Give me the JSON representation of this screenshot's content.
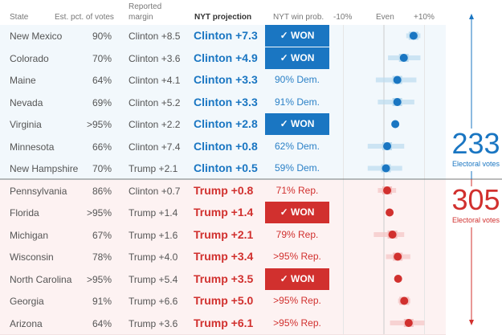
{
  "header": {
    "state": "State",
    "pct": "Est. pct. of votes",
    "margin_l1": "Reported",
    "margin_l2": "margin",
    "projection": "NYT projection",
    "winprob": "NYT win prob.",
    "axis_left": "-10%",
    "axis_mid": "Even",
    "axis_right": "+10%"
  },
  "colors": {
    "clinton": "#1a76c2",
    "trump": "#d1302e"
  },
  "totals": {
    "clinton": "233",
    "trump": "305",
    "label": "Electoral votes"
  },
  "chart_data": {
    "type": "scatter",
    "title": "NYT projection",
    "xlabel": "margin",
    "xlim": [
      -10,
      10
    ],
    "rows": [
      {
        "state": "New Mexico",
        "pct": "90%",
        "margin": "Clinton +8.5",
        "proj": "Clinton +7.3",
        "prob": "✓ WON",
        "won": true,
        "party": "c",
        "value": 7.3,
        "lo": 5.5,
        "hi": 9
      },
      {
        "state": "Colorado",
        "pct": "70%",
        "margin": "Clinton +3.6",
        "proj": "Clinton +4.9",
        "prob": "✓ WON",
        "won": true,
        "party": "c",
        "value": 4.9,
        "lo": 1,
        "hi": 9
      },
      {
        "state": "Maine",
        "pct": "64%",
        "margin": "Clinton +4.1",
        "proj": "Clinton +3.3",
        "prob": "90% Dem.",
        "won": false,
        "party": "c",
        "value": 3.3,
        "lo": -2,
        "hi": 8
      },
      {
        "state": "Nevada",
        "pct": "69%",
        "margin": "Clinton +5.2",
        "proj": "Clinton +3.3",
        "prob": "91% Dem.",
        "won": false,
        "party": "c",
        "value": 3.3,
        "lo": -1.5,
        "hi": 7.5
      },
      {
        "state": "Virginia",
        "pct": ">95%",
        "margin": "Clinton +2.2",
        "proj": "Clinton +2.8",
        "prob": "✓ WON",
        "won": true,
        "party": "c",
        "value": 2.8,
        "lo": 2.8,
        "hi": 2.8
      },
      {
        "state": "Minnesota",
        "pct": "66%",
        "margin": "Clinton +7.4",
        "proj": "Clinton +0.8",
        "prob": "62% Dem.",
        "won": false,
        "party": "c",
        "value": 0.8,
        "lo": -4,
        "hi": 5
      },
      {
        "state": "New Hampshire",
        "pct": "70%",
        "margin": "Trump +2.1",
        "proj": "Clinton +0.5",
        "prob": "59% Dem.",
        "won": false,
        "party": "c",
        "value": 0.5,
        "lo": -4,
        "hi": 4.5
      },
      {
        "state": "Pennsylvania",
        "pct": "86%",
        "margin": "Clinton +0.7",
        "proj": "Trump +0.8",
        "prob": "71% Rep.",
        "won": false,
        "party": "t",
        "value": 0.8,
        "lo": -1.5,
        "hi": 3
      },
      {
        "state": "Florida",
        "pct": ">95%",
        "margin": "Trump +1.4",
        "proj": "Trump +1.4",
        "prob": "✓ WON",
        "won": true,
        "party": "t",
        "value": 1.4,
        "lo": 1.4,
        "hi": 1.4
      },
      {
        "state": "Michigan",
        "pct": "67%",
        "margin": "Trump +1.6",
        "proj": "Trump +2.1",
        "prob": "79% Rep.",
        "won": false,
        "party": "t",
        "value": 2.1,
        "lo": -2.5,
        "hi": 5
      },
      {
        "state": "Wisconsin",
        "pct": "78%",
        "margin": "Trump +4.0",
        "proj": "Trump +3.4",
        "prob": ">95% Rep.",
        "won": false,
        "party": "t",
        "value": 3.4,
        "lo": 0.5,
        "hi": 6.5
      },
      {
        "state": "North Carolina",
        "pct": ">95%",
        "margin": "Trump +5.4",
        "proj": "Trump +3.5",
        "prob": "✓ WON",
        "won": true,
        "party": "t",
        "value": 3.5,
        "lo": 3.5,
        "hi": 3.5
      },
      {
        "state": "Georgia",
        "pct": "91%",
        "margin": "Trump +6.6",
        "proj": "Trump +5.0",
        "prob": ">95% Rep.",
        "won": false,
        "party": "t",
        "value": 5.0,
        "lo": 3.5,
        "hi": 6.5
      },
      {
        "state": "Arizona",
        "pct": "64%",
        "margin": "Trump +3.6",
        "proj": "Trump +6.1",
        "prob": ">95% Rep.",
        "won": false,
        "party": "t",
        "value": 6.1,
        "lo": 1.5,
        "hi": 10
      }
    ]
  }
}
